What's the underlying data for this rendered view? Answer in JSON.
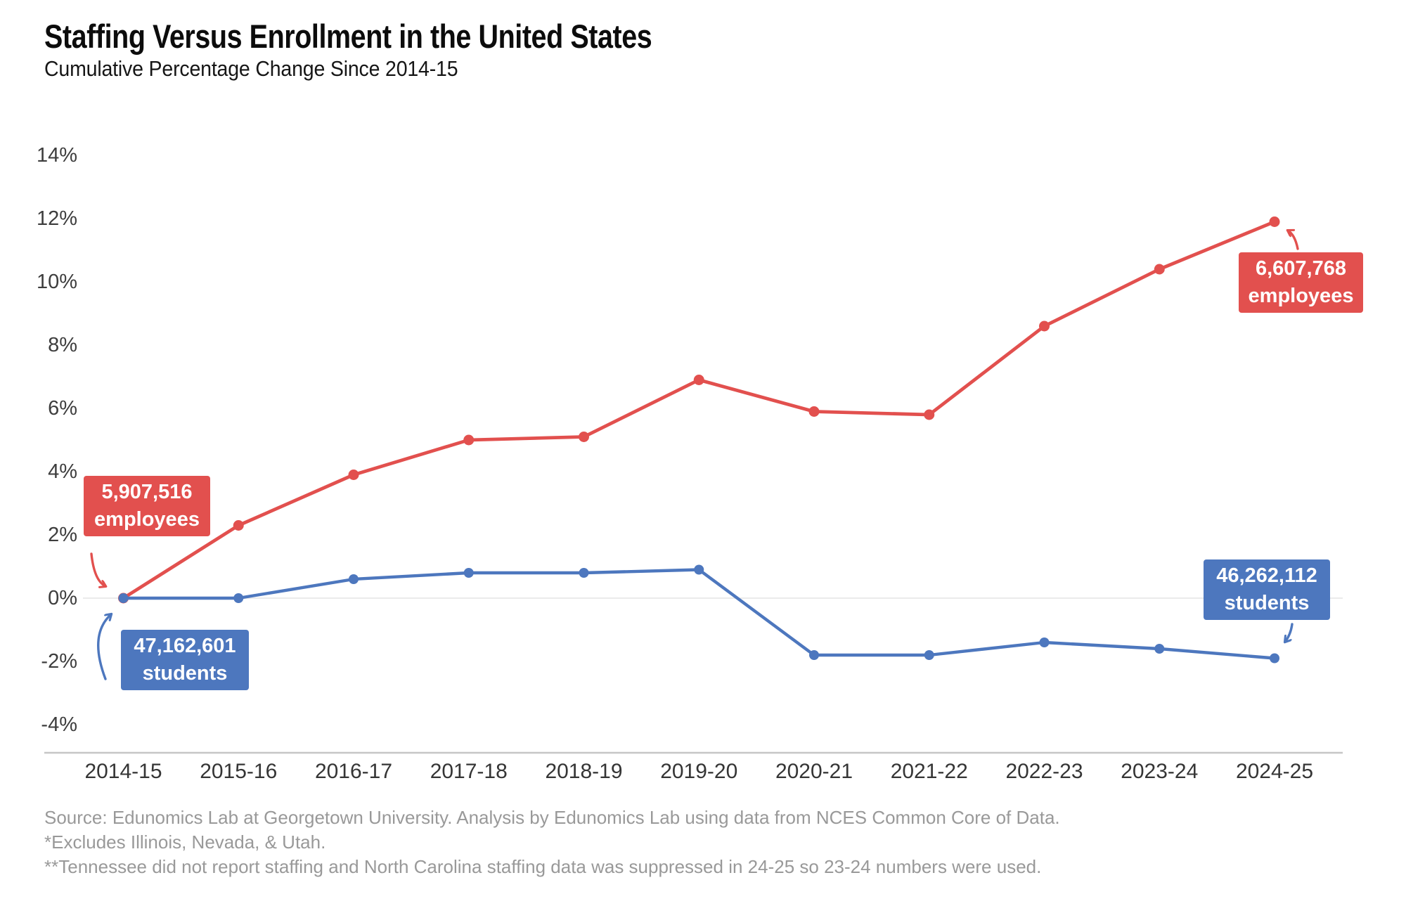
{
  "header": {
    "title": "Staffing Versus Enrollment in the United States",
    "subtitle": "Cumulative Percentage Change Since 2014-15"
  },
  "chart_data": {
    "type": "line",
    "title": "Staffing Versus Enrollment in the United States",
    "subtitle": "Cumulative Percentage Change Since 2014-15",
    "xlabel": "",
    "ylabel": "Cumulative percentage change since 2014-15",
    "ylim": [
      -4,
      14
    ],
    "grid": "zero-line-only",
    "legend": "none (direct callout labels on lines)",
    "categories": [
      "2014-15",
      "2015-16",
      "2016-17",
      "2017-18",
      "2018-19",
      "2019-20",
      "2020-21",
      "2021-22",
      "2022-23",
      "2023-24",
      "2024-25"
    ],
    "y_tick_labels": [
      "14%",
      "12%",
      "10%",
      "8%",
      "6%",
      "4%",
      "2%",
      "0%",
      "-2%",
      "-4%"
    ],
    "y_tick_values": [
      14,
      12,
      10,
      8,
      6,
      4,
      2,
      0,
      -2,
      -4
    ],
    "series": [
      {
        "name": "employees",
        "color": "#E2504E",
        "values": [
          0,
          2.3,
          3.9,
          5.0,
          5.1,
          6.9,
          5.9,
          5.8,
          8.6,
          10.4,
          11.9
        ]
      },
      {
        "name": "students",
        "color": "#4D77BE",
        "values": [
          0,
          0.0,
          0.6,
          0.8,
          0.8,
          0.9,
          -1.8,
          -1.8,
          -1.4,
          -1.6,
          -1.9
        ]
      }
    ],
    "annotations": {
      "employees_start": {
        "line1": "5,907,516",
        "line2": "employees"
      },
      "students_start": {
        "line1": "47,162,601",
        "line2": "students"
      },
      "employees_end": {
        "line1": "6,607,768",
        "line2": "employees"
      },
      "students_end": {
        "line1": "46,262,112",
        "line2": "students"
      }
    }
  },
  "colors": {
    "employees": "#E2504E",
    "students": "#4D77BE",
    "zero_gridline": "#EBEBEB",
    "axis_line": "#C6C6C6",
    "footnote_text": "#999999"
  },
  "footnotes": {
    "source": "Source: Edunomics Lab at Georgetown University. Analysis by Edunomics Lab using data from NCES Common Core of Data.",
    "excludes": "*Excludes Illinois, Nevada, & Utah.",
    "tennessee": "**Tennessee did not report staffing and North Carolina staffing data was suppressed in 24-25 so 23-24 numbers were used."
  }
}
